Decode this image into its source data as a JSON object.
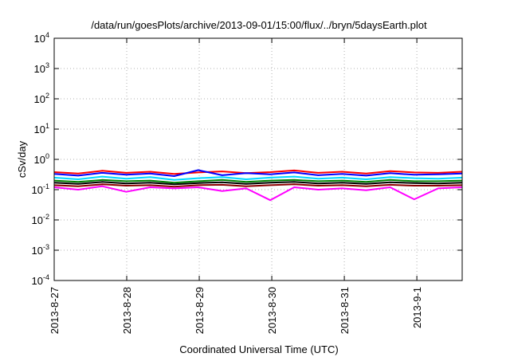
{
  "chart_data": {
    "type": "line",
    "title": "/data/run/goesPlots/archive/2013-09-01/15:00/flux/../bryn/5daysEarth.plot",
    "xlabel": "Coordinated Universal Time (UTC)",
    "ylabel": "cSv/day",
    "yscale": "log",
    "ylim": [
      0.0001,
      10000
    ],
    "xlim": [
      "2013-08-27 00:00",
      "2013-09-01 15:00"
    ],
    "grid": true,
    "y_ticks": [
      {
        "base": "10",
        "exp": "4",
        "value": 10000
      },
      {
        "base": "10",
        "exp": "3",
        "value": 1000
      },
      {
        "base": "10",
        "exp": "2",
        "value": 100
      },
      {
        "base": "10",
        "exp": "1",
        "value": 10
      },
      {
        "base": "10",
        "exp": "0",
        "value": 1
      },
      {
        "base": "10",
        "exp": "-1",
        "value": 0.1
      },
      {
        "base": "10",
        "exp": "-2",
        "value": 0.01
      },
      {
        "base": "10",
        "exp": "-3",
        "value": 0.001
      },
      {
        "base": "10",
        "exp": "-4",
        "value": 0.0001
      }
    ],
    "x_ticks": [
      {
        "label": "2013-8-27",
        "value": "2013-08-27 00:00"
      },
      {
        "label": "2013-8-28",
        "value": "2013-08-28 00:00"
      },
      {
        "label": "2013-8-29",
        "value": "2013-08-29 00:00"
      },
      {
        "label": "2013-8-30",
        "value": "2013-08-30 00:00"
      },
      {
        "label": "2013-8-31",
        "value": "2013-08-31 00:00"
      },
      {
        "label": "2013-9-1",
        "value": "2013-09-01 00:00"
      }
    ],
    "series": [
      {
        "color": "#ff0000",
        "values": [
          0.38,
          0.34,
          0.42,
          0.36,
          0.39,
          0.33,
          0.37,
          0.4,
          0.35,
          0.38,
          0.43,
          0.36,
          0.39,
          0.34,
          0.41,
          0.37,
          0.36,
          0.39
        ]
      },
      {
        "color": "#0000ff",
        "values": [
          0.33,
          0.29,
          0.36,
          0.31,
          0.34,
          0.28,
          0.44,
          0.3,
          0.35,
          0.32,
          0.37,
          0.3,
          0.33,
          0.29,
          0.35,
          0.31,
          0.32,
          0.34
        ]
      },
      {
        "color": "#00d8ff",
        "values": [
          0.25,
          0.22,
          0.27,
          0.23,
          0.26,
          0.21,
          0.24,
          0.26,
          0.22,
          0.25,
          0.27,
          0.23,
          0.25,
          0.22,
          0.26,
          0.24,
          0.23,
          0.25
        ]
      },
      {
        "color": "#008000",
        "values": [
          0.2,
          0.18,
          0.21,
          0.19,
          0.2,
          0.17,
          0.19,
          0.21,
          0.18,
          0.2,
          0.21,
          0.19,
          0.2,
          0.18,
          0.21,
          0.19,
          0.19,
          0.2
        ]
      },
      {
        "color": "#000000",
        "values": [
          0.17,
          0.155,
          0.18,
          0.16,
          0.17,
          0.15,
          0.165,
          0.175,
          0.155,
          0.17,
          0.18,
          0.16,
          0.17,
          0.155,
          0.175,
          0.165,
          0.16,
          0.17
        ]
      },
      {
        "color": "#8b0000",
        "values": [
          0.14,
          0.13,
          0.15,
          0.135,
          0.14,
          0.125,
          0.14,
          0.145,
          0.13,
          0.14,
          0.15,
          0.135,
          0.14,
          0.13,
          0.145,
          0.135,
          0.135,
          0.14
        ]
      },
      {
        "color": "#ff00ff",
        "values": [
          0.12,
          0.1,
          0.13,
          0.085,
          0.12,
          0.11,
          0.12,
          0.09,
          0.11,
          0.045,
          0.12,
          0.1,
          0.11,
          0.095,
          0.12,
          0.048,
          0.11,
          0.12
        ]
      }
    ]
  }
}
